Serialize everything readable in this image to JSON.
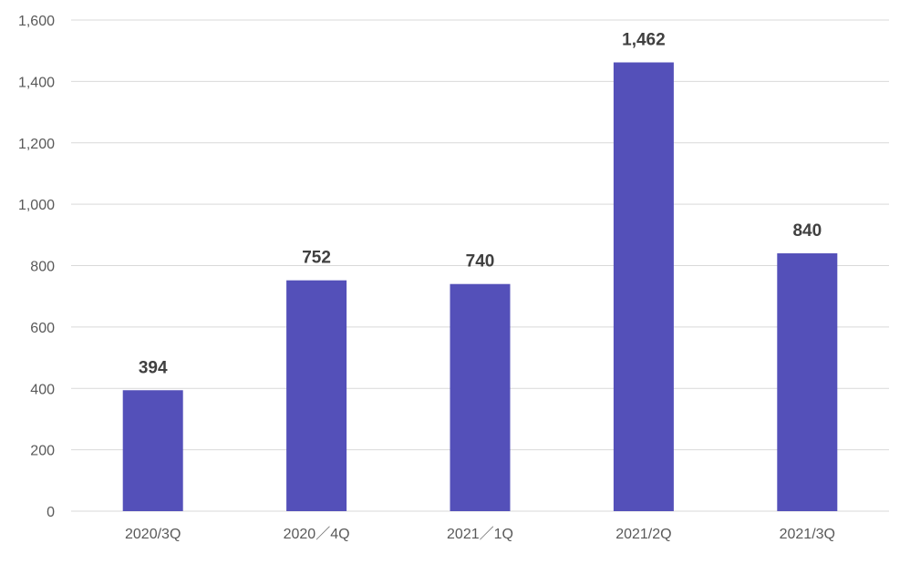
{
  "chart_data": {
    "type": "bar",
    "categories": [
      "2020/3Q",
      "2020／4Q",
      "2021／1Q",
      "2021/2Q",
      "2021/3Q"
    ],
    "values": [
      394,
      752,
      740,
      1462,
      840
    ],
    "data_labels": [
      "394",
      "752",
      "740",
      "1,462",
      "840"
    ],
    "ylim": [
      0,
      1600
    ],
    "yticks": [
      0,
      200,
      400,
      600,
      800,
      1000,
      1200,
      1400,
      1600
    ],
    "ytick_labels": [
      "0",
      "200",
      "400",
      "600",
      "800",
      "1,000",
      "1,200",
      "1,400",
      "1,600"
    ],
    "title": "",
    "xlabel": "",
    "ylabel": "",
    "grid": true,
    "bar_color": "#5450B9"
  }
}
